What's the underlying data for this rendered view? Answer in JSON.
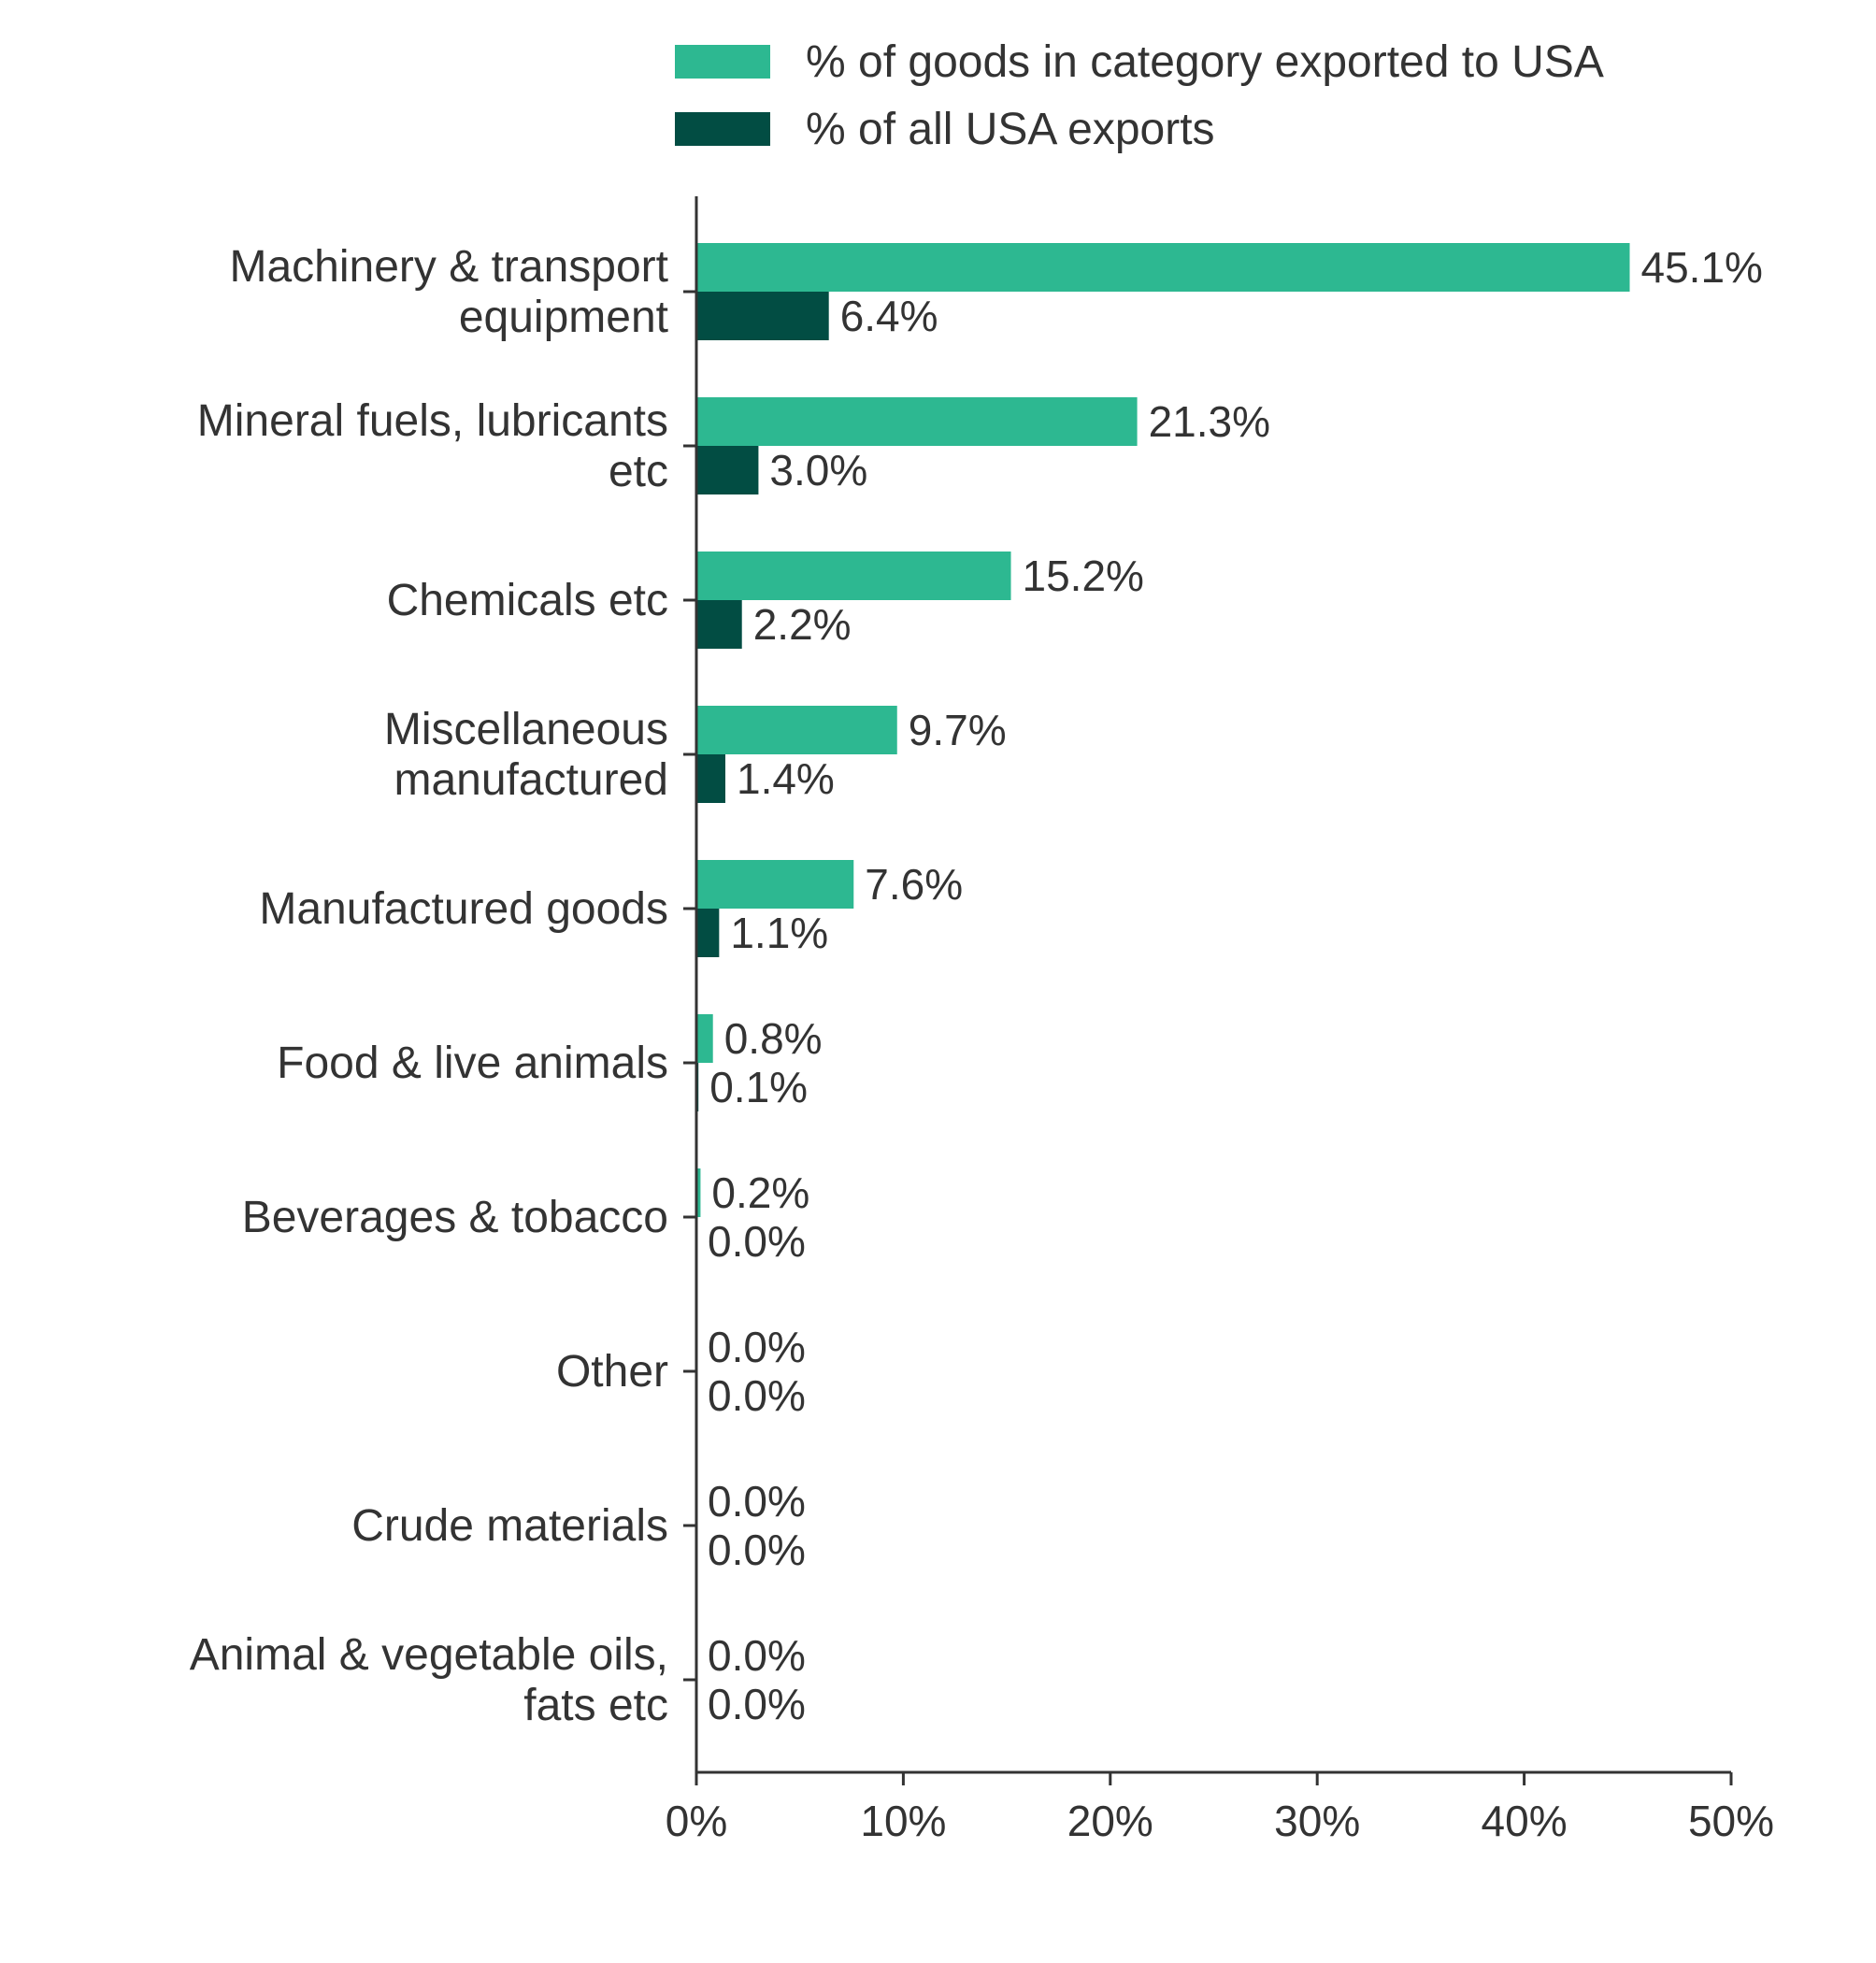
{
  "chart_data": {
    "type": "bar",
    "orientation": "horizontal",
    "categories": [
      [
        "Machinery & transport",
        "equipment"
      ],
      [
        "Mineral fuels, lubricants",
        "etc"
      ],
      [
        "Chemicals etc"
      ],
      [
        "Miscellaneous",
        "manufactured"
      ],
      [
        "Manufactured goods"
      ],
      [
        "Food & live animals"
      ],
      [
        "Beverages & tobacco"
      ],
      [
        "Other"
      ],
      [
        "Crude materials"
      ],
      [
        "Animal & vegetable oils,",
        "fats etc"
      ]
    ],
    "series": [
      {
        "name": "% of goods in category exported to USA",
        "color": "#2db891",
        "values": [
          45.1,
          21.3,
          15.2,
          9.7,
          7.6,
          0.8,
          0.2,
          0.0,
          0.0,
          0.0
        ],
        "labels": [
          "45.1%",
          "21.3%",
          "15.2%",
          "9.7%",
          "7.6%",
          "0.8%",
          "0.2%",
          "0.0%",
          "0.0%",
          "0.0%"
        ]
      },
      {
        "name": "% of all USA exports",
        "color": "#024d43",
        "values": [
          6.4,
          3.0,
          2.2,
          1.4,
          1.1,
          0.1,
          0.0,
          0.0,
          0.0,
          0.0
        ],
        "labels": [
          "6.4%",
          "3.0%",
          "2.2%",
          "1.4%",
          "1.1%",
          "0.1%",
          "0.0%",
          "0.0%",
          "0.0%",
          "0.0%"
        ]
      }
    ],
    "xlim": [
      0,
      50
    ],
    "xticks": [
      0,
      10,
      20,
      30,
      40,
      50
    ],
    "xtick_labels": [
      "0%",
      "10%",
      "20%",
      "30%",
      "40%",
      "50%"
    ],
    "legend_position": "top",
    "grid": false,
    "title": "",
    "xlabel": "",
    "ylabel": ""
  }
}
